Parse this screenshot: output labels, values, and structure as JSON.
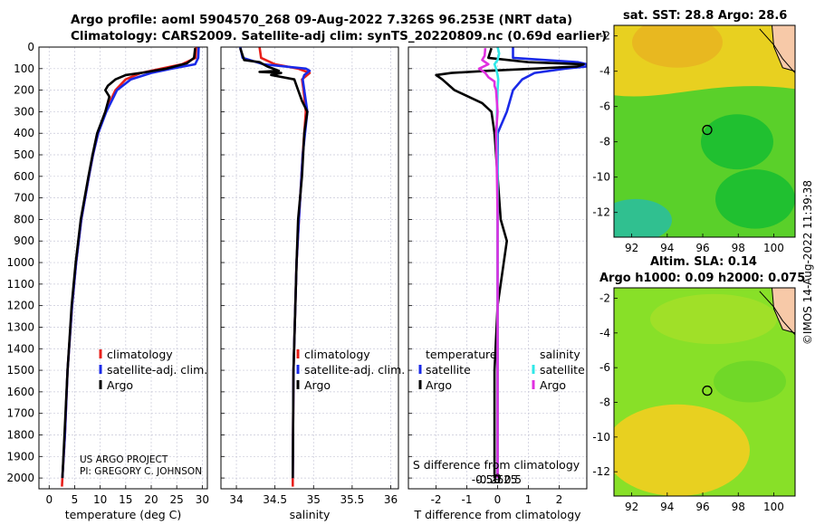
{
  "header": {
    "title_line1": "Argo profile: aoml 5904570_268 09-Aug-2022 7.326S 96.253E (NRT data)",
    "title_line2": "Climatology: CARS2009. Satellite-adj clim: synTS_20220809.nc (0.69d earlier)"
  },
  "maps": {
    "sst_title": "sat. SST: 28.8 Argo: 28.6",
    "sla_title_line1": "Altim. SLA: 0.14",
    "sla_title_line2": "Argo h1000: 0.09 h2000: 0.075",
    "lon_ticks": [
      "92",
      "94",
      "96",
      "98",
      "100"
    ],
    "lat_ticks": [
      "-2",
      "-4",
      "-6",
      "-8",
      "-10",
      "-12"
    ],
    "lon_range": [
      91.0,
      101.2
    ],
    "lat_range": [
      -13.4,
      -1.4
    ],
    "argo_position": {
      "lon": 96.253,
      "lat": -7.326
    },
    "colors": {
      "sst_yellow": "#e8d020",
      "sst_green": "#5ad02a",
      "sst_dark_green": "#20c030",
      "sst_cyan": "#30c090",
      "sla_green": "#88e028",
      "sla_yellow": "#e8d020",
      "land": "#f7c9a8"
    }
  },
  "timestamp": "©IMOS 14-Aug-2022 11:39:38",
  "credits": {
    "line1": "US ARGO PROJECT",
    "line2": "PI: GREGORY C. JOHNSON"
  },
  "chart_data": [
    {
      "type": "line",
      "id": "temperature",
      "xlabel": "temperature (deg C)",
      "ylabel": "",
      "xlim": [
        -2,
        31
      ],
      "ylim": [
        2050,
        0
      ],
      "xticks": [
        0,
        5,
        10,
        15,
        20,
        25,
        30
      ],
      "xtick_labels": [
        "0",
        "5",
        "10",
        "15",
        "20",
        "25",
        "30"
      ],
      "yticks": [
        0,
        100,
        200,
        300,
        400,
        500,
        600,
        700,
        800,
        900,
        1000,
        1100,
        1200,
        1300,
        1400,
        1500,
        1600,
        1700,
        1800,
        1900,
        2000
      ],
      "ytick_labels": [
        "0",
        "100",
        "200",
        "300",
        "400",
        "500",
        "600",
        "700",
        "800",
        "900",
        "1000",
        "1100",
        "1200",
        "1300",
        "1400",
        "1500",
        "1600",
        "1700",
        "1800",
        "1900",
        "2000"
      ],
      "legend": [
        "climatology",
        "satellite-adj. clim.",
        "Argo"
      ],
      "series": [
        {
          "name": "climatology",
          "color": "#e8201a",
          "depth": [
            0,
            50,
            80,
            100,
            120,
            150,
            200,
            300,
            400,
            500,
            600,
            800,
            1000,
            1200,
            1500,
            1800,
            2000,
            2040
          ],
          "values": [
            28.8,
            28.7,
            26,
            22,
            18,
            15,
            13,
            11,
            9.6,
            8.6,
            7.8,
            6.3,
            5.3,
            4.5,
            3.6,
            3.1,
            2.6,
            2.5
          ]
        },
        {
          "name": "satellite-adj. clim.",
          "color": "#1a2ae8",
          "depth": [
            0,
            50,
            80,
            100,
            120,
            150,
            200,
            300,
            400,
            500,
            600,
            800,
            1000,
            1200,
            1500,
            1800,
            2000
          ],
          "values": [
            29.3,
            29.2,
            28.6,
            24,
            20,
            16,
            13.3,
            11.2,
            9.6,
            8.6,
            7.8,
            6.3,
            5.3,
            4.5,
            3.6,
            3.1,
            2.6
          ]
        },
        {
          "name": "Argo",
          "color": "#000000",
          "depth": [
            5,
            50,
            75,
            100,
            120,
            130,
            150,
            180,
            200,
            230,
            300,
            400,
            500,
            600,
            800,
            1000,
            1200,
            1500,
            1800,
            2000
          ],
          "values": [
            28.6,
            28.4,
            27,
            23,
            18,
            15,
            13,
            11.5,
            11,
            11.8,
            11,
            9.4,
            8.5,
            7.7,
            6.2,
            5.2,
            4.4,
            3.6,
            3.0,
            2.6
          ]
        }
      ]
    },
    {
      "type": "line",
      "id": "salinity",
      "xlabel": "salinity",
      "xlim": [
        33.8,
        36.1
      ],
      "ylim": [
        2050,
        0
      ],
      "xticks": [
        34,
        34.5,
        35,
        35.5,
        36
      ],
      "xtick_labels": [
        "34",
        "34.5",
        "35",
        "35.5",
        "36"
      ],
      "legend": [
        "climatology",
        "satellite-adj. clim.",
        "Argo"
      ],
      "series": [
        {
          "name": "climatology",
          "color": "#e8201a",
          "depth": [
            0,
            50,
            80,
            100,
            120,
            150,
            200,
            300,
            500,
            800,
            1000,
            1500,
            2000,
            2040
          ],
          "values": [
            34.3,
            34.32,
            34.5,
            34.8,
            34.95,
            34.85,
            34.87,
            34.9,
            34.86,
            34.81,
            34.78,
            34.74,
            34.73,
            34.73
          ]
        },
        {
          "name": "satellite-adj. clim.",
          "color": "#1a2ae8",
          "depth": [
            0,
            50,
            80,
            100,
            110,
            130,
            150,
            200,
            300,
            500,
            800,
            1000,
            1500,
            2000
          ],
          "values": [
            34.05,
            34.08,
            34.35,
            34.9,
            34.95,
            34.88,
            34.86,
            34.88,
            34.92,
            34.86,
            34.81,
            34.78,
            34.74,
            34.73
          ]
        },
        {
          "name": "Argo",
          "color": "#000000",
          "depth": [
            5,
            60,
            70,
            90,
            110,
            115,
            120,
            130,
            150,
            200,
            250,
            300,
            400,
            600,
            800,
            1000,
            1500,
            2000
          ],
          "values": [
            34.05,
            34.1,
            34.3,
            34.4,
            34.55,
            34.3,
            34.58,
            34.45,
            34.75,
            34.8,
            34.85,
            34.92,
            34.88,
            34.85,
            34.8,
            34.78,
            34.74,
            34.73
          ]
        }
      ]
    },
    {
      "type": "line",
      "id": "difference",
      "xlabel": "T difference from climatology",
      "xlabel_top": "S difference from climatology",
      "xlim": [
        -2.9,
        2.9
      ],
      "ylim": [
        2050,
        0
      ],
      "xticks": [
        -2,
        -1,
        0,
        1,
        2
      ],
      "xtick_labels": [
        "-2",
        "-1",
        "0",
        "1",
        "2"
      ],
      "s_ticks": [
        -0.5,
        -0.25,
        0,
        0.25,
        0.5
      ],
      "s_tick_labels": [
        "-0.5",
        "-0.25",
        "0",
        "0.25",
        "0.5"
      ],
      "legend_temperature_title": "temperature",
      "legend_salinity_title": "salinity",
      "legend_temperature": [
        "satellite",
        "Argo"
      ],
      "legend_salinity": [
        "satellite",
        "Argo"
      ],
      "series": [
        {
          "name": "T satellite",
          "color": "#1a2ae8",
          "depth": [
            0,
            50,
            70,
            80,
            90,
            100,
            120,
            150,
            200,
            300,
            400,
            600,
            800,
            1000,
            1500,
            2000
          ],
          "values": [
            0.5,
            0.5,
            2.6,
            2.9,
            2.9,
            2.2,
            1.2,
            0.8,
            0.5,
            0.3,
            0,
            0,
            0,
            0,
            0,
            0
          ]
        },
        {
          "name": "T Argo",
          "color": "#000000",
          "depth": [
            5,
            50,
            70,
            80,
            90,
            100,
            110,
            120,
            130,
            150,
            200,
            260,
            300,
            400,
            600,
            800,
            900,
            1000,
            1200,
            1500,
            2000
          ],
          "values": [
            -0.2,
            -0.3,
            1.0,
            2.8,
            2.6,
            1.2,
            -0.3,
            -1.5,
            -2.0,
            -1.8,
            -1.4,
            -0.5,
            -0.2,
            -0.1,
            0,
            0.1,
            0.3,
            0.2,
            0,
            -0.1,
            -0.1
          ]
        },
        {
          "name": "S satellite",
          "color": "#30e8e8",
          "depth": [
            0,
            30,
            60,
            80,
            100,
            130,
            150,
            200,
            300,
            400,
            600,
            1000,
            1500,
            2000
          ],
          "values": [
            0,
            0.05,
            0,
            -0.1,
            -0.05,
            0,
            0.02,
            0,
            -0.02,
            -0.03,
            0,
            0,
            0,
            0
          ]
        },
        {
          "name": "S Argo",
          "color": "#e030e0",
          "depth": [
            5,
            40,
            60,
            80,
            100,
            120,
            140,
            160,
            180,
            200,
            300,
            400,
            600,
            800,
            1000,
            1500,
            1800,
            2000
          ],
          "values": [
            -0.4,
            -0.42,
            -0.5,
            -0.3,
            -0.6,
            -0.4,
            -0.3,
            -0.1,
            -0.1,
            -0.05,
            0,
            -0.05,
            -0.02,
            0,
            0,
            0,
            0,
            0
          ]
        }
      ]
    }
  ]
}
